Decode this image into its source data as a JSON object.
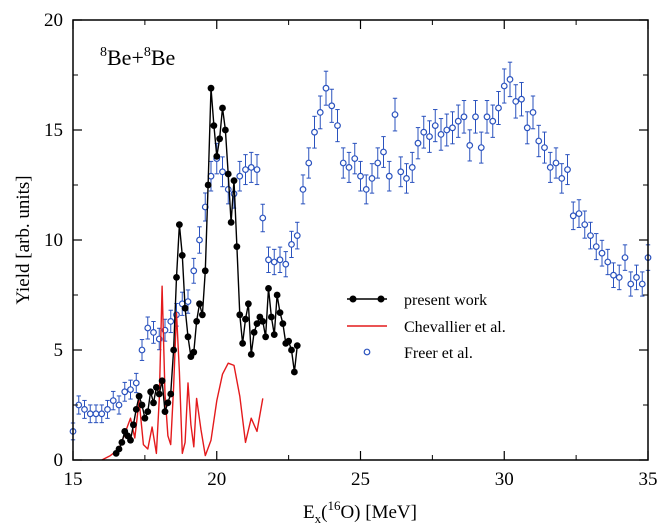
{
  "chart_data": {
    "type": "scatter",
    "panel_label": {
      "base": "Be+",
      "sup1": "8",
      "sup2": "8",
      "tail": "Be"
    },
    "xlabel": {
      "pre": "E",
      "sub": "x",
      "mid": "(",
      "sup": "16",
      "post": "O)  [MeV]"
    },
    "ylabel": "Yield [arb. units]",
    "xlim": [
      15,
      35
    ],
    "ylim": [
      0,
      20
    ],
    "xticks": [
      "15",
      "20",
      "25",
      "30",
      "35"
    ],
    "yticks": [
      "0",
      "5",
      "10",
      "15",
      "20"
    ],
    "grid": false,
    "legend_position": "center-right",
    "series": [
      {
        "name": "present work",
        "style": "line-marker",
        "color": "#000000",
        "x": [
          16.5,
          16.6,
          16.7,
          16.8,
          16.9,
          17.0,
          17.1,
          17.2,
          17.3,
          17.4,
          17.5,
          17.6,
          17.7,
          17.8,
          17.9,
          18.0,
          18.1,
          18.2,
          18.3,
          18.4,
          18.5,
          18.6,
          18.7,
          18.8,
          18.9,
          19.0,
          19.1,
          19.2,
          19.3,
          19.4,
          19.5,
          19.6,
          19.7,
          19.8,
          19.9,
          20.0,
          20.1,
          20.2,
          20.3,
          20.4,
          20.5,
          20.6,
          20.7,
          20.8,
          20.9,
          21.0,
          21.1,
          21.2,
          21.3,
          21.4,
          21.5,
          21.6,
          21.7,
          21.8,
          21.9,
          22.0,
          22.1,
          22.2,
          22.3,
          22.4,
          22.5,
          22.6,
          22.7,
          22.8
        ],
        "y": [
          0.3,
          0.5,
          0.8,
          1.3,
          1.1,
          0.9,
          1.6,
          2.3,
          2.9,
          2.5,
          1.9,
          2.2,
          3.1,
          2.6,
          3.3,
          3.0,
          3.6,
          2.2,
          2.6,
          3.0,
          5.0,
          8.3,
          10.7,
          9.3,
          6.9,
          5.6,
          4.7,
          4.9,
          6.3,
          7.1,
          6.6,
          8.6,
          12.5,
          16.9,
          15.2,
          13.8,
          14.6,
          16.0,
          15.0,
          13.0,
          10.8,
          12.7,
          9.7,
          6.6,
          5.3,
          6.4,
          7.1,
          4.8,
          5.8,
          6.2,
          6.5,
          6.3,
          5.6,
          7.8,
          6.5,
          5.7,
          7.5,
          6.7,
          6.2,
          5.3,
          5.4,
          5.0,
          4.0,
          5.2
        ]
      },
      {
        "name": "Chevallier et al.",
        "style": "line",
        "color": "#e41a1c",
        "x": [
          16.0,
          16.3,
          16.6,
          16.8,
          17.0,
          17.15,
          17.3,
          17.45,
          17.6,
          17.75,
          17.9,
          18.0,
          18.1,
          18.2,
          18.3,
          18.4,
          18.5,
          18.6,
          18.7,
          18.8,
          18.9,
          19.0,
          19.1,
          19.2,
          19.3,
          19.45,
          19.6,
          19.8,
          20.0,
          20.2,
          20.4,
          20.6,
          20.8,
          21.0,
          21.2,
          21.4,
          21.6
        ],
        "y": [
          0.0,
          0.2,
          0.5,
          1.2,
          1.9,
          1.0,
          2.7,
          0.7,
          0.5,
          1.5,
          0.3,
          2.8,
          7.9,
          3.0,
          1.1,
          0.7,
          3.3,
          6.7,
          4.0,
          0.3,
          0.8,
          3.5,
          1.6,
          0.6,
          2.8,
          1.4,
          0.2,
          0.9,
          2.7,
          3.9,
          4.4,
          4.3,
          2.9,
          0.8,
          1.9,
          1.3,
          2.8
        ]
      },
      {
        "name": "Freer et al.",
        "style": "marker-errorbar",
        "color": "#2a52be",
        "x": [
          15.0,
          15.2,
          15.4,
          15.6,
          15.8,
          16.0,
          16.2,
          16.4,
          16.6,
          16.8,
          17.0,
          17.2,
          17.4,
          17.6,
          17.8,
          18.0,
          18.2,
          18.4,
          18.6,
          18.8,
          19.0,
          19.2,
          19.4,
          19.6,
          19.8,
          20.0,
          20.2,
          20.4,
          20.6,
          20.8,
          21.0,
          21.2,
          21.4,
          21.6,
          21.8,
          22.0,
          22.2,
          22.4,
          22.6,
          22.8,
          23.0,
          23.2,
          23.4,
          23.6,
          23.8,
          24.0,
          24.2,
          24.4,
          24.6,
          24.8,
          25.0,
          25.2,
          25.4,
          25.6,
          25.8,
          26.0,
          26.2,
          26.4,
          26.6,
          26.8,
          27.0,
          27.2,
          27.4,
          27.6,
          27.8,
          28.0,
          28.2,
          28.4,
          28.6,
          28.8,
          29.0,
          29.2,
          29.4,
          29.6,
          29.8,
          30.0,
          30.2,
          30.4,
          30.6,
          30.8,
          31.0,
          31.2,
          31.4,
          31.6,
          31.8,
          32.0,
          32.2,
          32.4,
          32.6,
          32.8,
          33.0,
          33.2,
          33.4,
          33.6,
          33.8,
          34.0,
          34.2,
          34.4,
          34.6,
          34.8,
          35.0
        ],
        "y": [
          1.3,
          2.5,
          2.3,
          2.1,
          2.1,
          2.1,
          2.3,
          2.7,
          2.5,
          3.1,
          3.2,
          3.5,
          5.0,
          6.0,
          5.8,
          5.5,
          5.9,
          6.3,
          6.6,
          7.1,
          7.2,
          8.6,
          10.0,
          11.5,
          12.9,
          13.7,
          13.1,
          12.3,
          12.1,
          12.9,
          13.2,
          13.3,
          13.2,
          11.0,
          9.1,
          9.0,
          9.1,
          8.9,
          9.8,
          10.2,
          12.3,
          13.5,
          14.9,
          15.8,
          16.9,
          16.1,
          15.2,
          13.5,
          13.3,
          13.7,
          12.9,
          12.3,
          12.8,
          13.5,
          14.0,
          12.9,
          15.7,
          13.1,
          12.8,
          13.3,
          14.4,
          14.9,
          14.7,
          15.2,
          14.8,
          15.0,
          15.1,
          15.4,
          15.6,
          14.3,
          15.6,
          14.2,
          15.6,
          15.4,
          16.0,
          17.0,
          17.3,
          16.3,
          16.4,
          15.1,
          15.8,
          14.5,
          14.2,
          13.3,
          13.5,
          12.8,
          13.2,
          11.1,
          11.2,
          10.7,
          10.2,
          9.7,
          9.4,
          9.0,
          8.4,
          8.3,
          9.2,
          8.0,
          8.3,
          8.0,
          9.2
        ]
      }
    ]
  }
}
